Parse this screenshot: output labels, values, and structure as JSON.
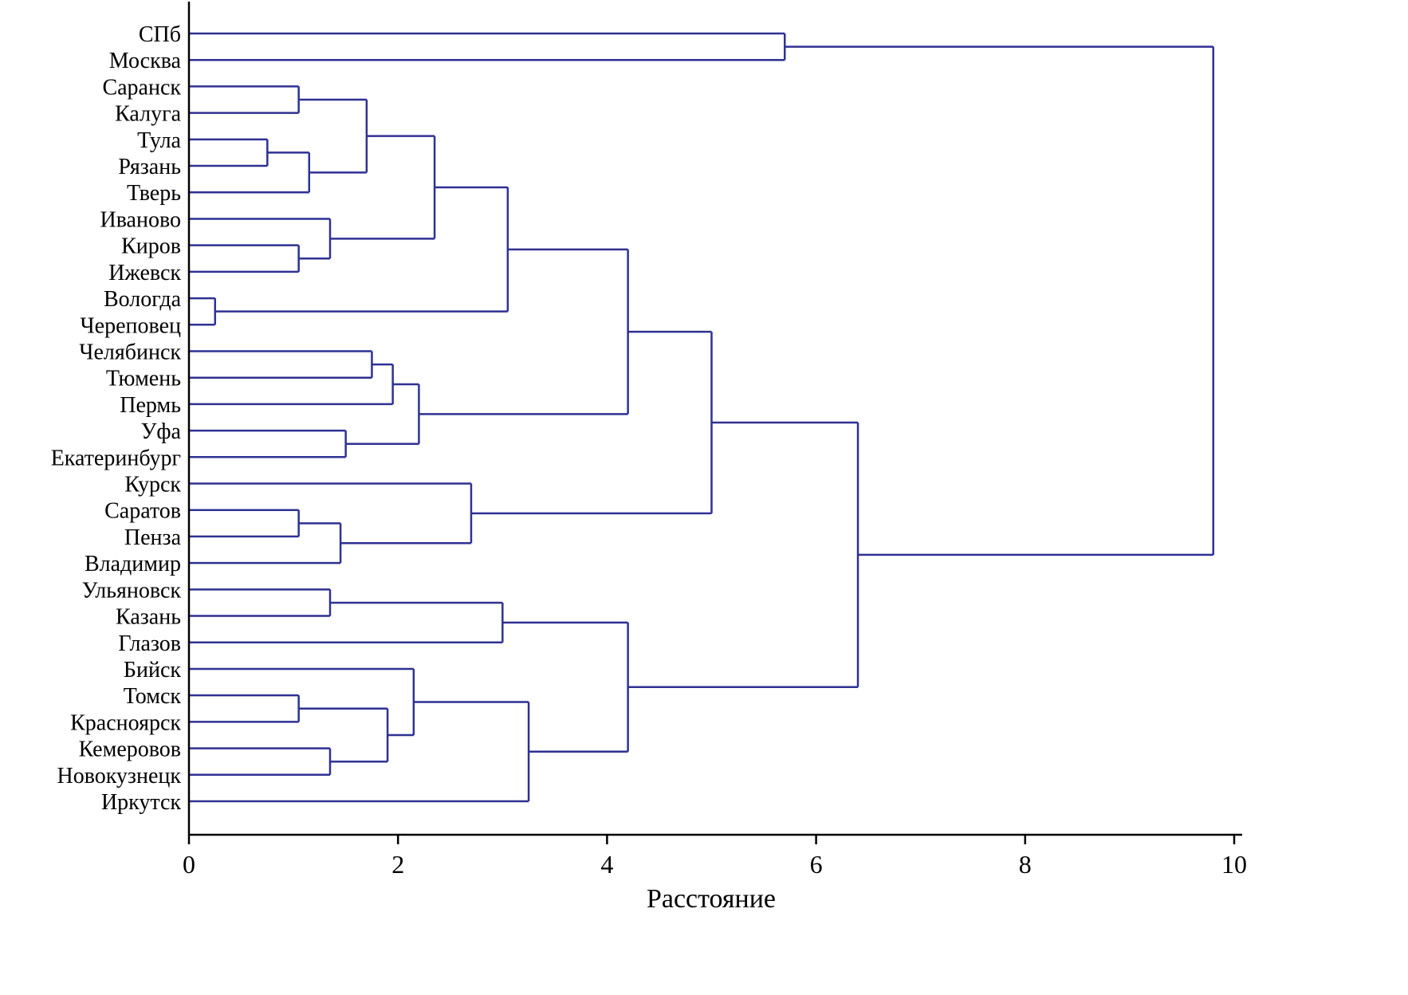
{
  "chart_data": {
    "type": "dendrogram",
    "title": "",
    "xlabel": "Расстояние",
    "xlim": [
      0,
      10
    ],
    "x_ticks": [
      0,
      2,
      4,
      6,
      8,
      10
    ],
    "x_tick_labels": [
      "0",
      "2",
      "4",
      "6",
      "8",
      "10"
    ],
    "grid": false,
    "orientation": "left",
    "line_color": "#2e3192",
    "axis_color": "#000000",
    "leaves": [
      "СПб",
      "Москва",
      "Саранск",
      "Калуга",
      "Тула",
      "Рязань",
      "Тверь",
      "Иваново",
      "Киров",
      "Ижевск",
      "Вологда",
      "Череповец",
      "Челябинск",
      "Тюмень",
      "Пермь",
      "Уфа",
      "Екатеринбург",
      "Курск",
      "Саратов",
      "Пенза",
      "Владимир",
      "Ульяновск",
      "Казань",
      "Глазов",
      "Бийск",
      "Томск",
      "Красноярск",
      "Кемеровов",
      "Новокузнецк",
      "Иркутск"
    ],
    "tree": {
      "d": 9.8,
      "children": [
        {
          "d": 5.7,
          "children": [
            {
              "leaf": "СПб"
            },
            {
              "leaf": "Москва"
            }
          ]
        },
        {
          "d": 6.4,
          "children": [
            {
              "d": 5.0,
              "children": [
                {
                  "d": 4.2,
                  "children": [
                    {
                      "d": 3.05,
                      "children": [
                        {
                          "d": 2.35,
                          "children": [
                            {
                              "d": 1.7,
                              "children": [
                                {
                                  "d": 1.05,
                                  "children": [
                                    {
                                      "leaf": "Саранск"
                                    },
                                    {
                                      "leaf": "Калуга"
                                    }
                                  ]
                                },
                                {
                                  "d": 1.15,
                                  "children": [
                                    {
                                      "d": 0.75,
                                      "children": [
                                        {
                                          "leaf": "Тула"
                                        },
                                        {
                                          "leaf": "Рязань"
                                        }
                                      ]
                                    },
                                    {
                                      "leaf": "Тверь"
                                    }
                                  ]
                                }
                              ]
                            },
                            {
                              "d": 1.35,
                              "children": [
                                {
                                  "leaf": "Иваново"
                                },
                                {
                                  "d": 1.05,
                                  "children": [
                                    {
                                      "leaf": "Киров"
                                    },
                                    {
                                      "leaf": "Ижевск"
                                    }
                                  ]
                                }
                              ]
                            }
                          ]
                        },
                        {
                          "d": 0.25,
                          "children": [
                            {
                              "leaf": "Вологда"
                            },
                            {
                              "leaf": "Череповец"
                            }
                          ]
                        }
                      ]
                    },
                    {
                      "d": 2.2,
                      "children": [
                        {
                          "d": 1.95,
                          "children": [
                            {
                              "d": 1.75,
                              "children": [
                                {
                                  "leaf": "Челябинск"
                                },
                                {
                                  "leaf": "Тюмень"
                                }
                              ]
                            },
                            {
                              "leaf": "Пермь"
                            }
                          ]
                        },
                        {
                          "d": 1.5,
                          "children": [
                            {
                              "leaf": "Уфа"
                            },
                            {
                              "leaf": "Екатеринбург"
                            }
                          ]
                        }
                      ]
                    }
                  ]
                },
                {
                  "d": 2.7,
                  "children": [
                    {
                      "leaf": "Курск"
                    },
                    {
                      "d": 1.45,
                      "children": [
                        {
                          "d": 1.05,
                          "children": [
                            {
                              "leaf": "Саратов"
                            },
                            {
                              "leaf": "Пенза"
                            }
                          ]
                        },
                        {
                          "leaf": "Владимир"
                        }
                      ]
                    }
                  ]
                }
              ]
            },
            {
              "d": 4.2,
              "children": [
                {
                  "d": 3.0,
                  "children": [
                    {
                      "d": 1.35,
                      "children": [
                        {
                          "leaf": "Ульяновск"
                        },
                        {
                          "leaf": "Казань"
                        }
                      ]
                    },
                    {
                      "leaf": "Глазов"
                    }
                  ]
                },
                {
                  "d": 3.25,
                  "children": [
                    {
                      "d": 2.15,
                      "children": [
                        {
                          "leaf": "Бийск"
                        },
                        {
                          "d": 1.9,
                          "children": [
                            {
                              "d": 1.05,
                              "children": [
                                {
                                  "leaf": "Томск"
                                },
                                {
                                  "leaf": "Красноярск"
                                }
                              ]
                            },
                            {
                              "d": 1.35,
                              "children": [
                                {
                                  "leaf": "Кемеровов"
                                },
                                {
                                  "leaf": "Новокузнецк"
                                }
                              ]
                            }
                          ]
                        }
                      ]
                    },
                    {
                      "leaf": "Иркутск"
                    }
                  ]
                }
              ]
            }
          ]
        }
      ]
    }
  }
}
